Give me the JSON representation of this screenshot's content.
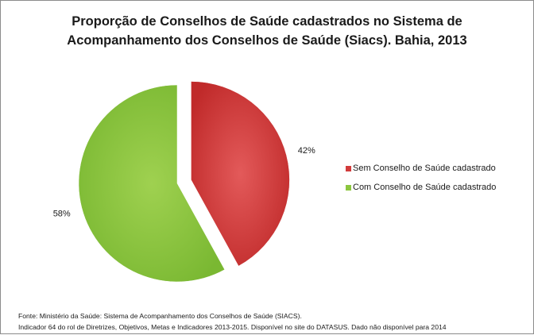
{
  "chart_data": {
    "type": "pie",
    "title_line1": "Proporção de Conselhos de Saúde cadastrados no Sistema de",
    "title_line2": "Acompanhamento dos Conselhos de Saúde (Siacs). Bahia, 2013",
    "slices": [
      {
        "label": "Sem Conselho de Saúde cadastrado",
        "value": 42,
        "display": "42%",
        "color": "#d23b3b",
        "exploded": true
      },
      {
        "label": "Com Conselho de Saúde cadastrado",
        "value": 58,
        "display": "58%",
        "color": "#8cc63f",
        "exploded": false
      }
    ],
    "legend_position": "right",
    "start_angle": "12 o'clock",
    "direction": "clockwise"
  },
  "footer": {
    "line1": "Fonte: Ministério da Saúde:  Sistema de Acompanhamento dos Conselhos de Saúde (SIACS).",
    "line2": "Indicador 64 do rol de Diretrizes, Objetivos, Metas e Indicadores 2013-2015. Disponível no site do DATASUS. Dado não disponível para 2014"
  }
}
